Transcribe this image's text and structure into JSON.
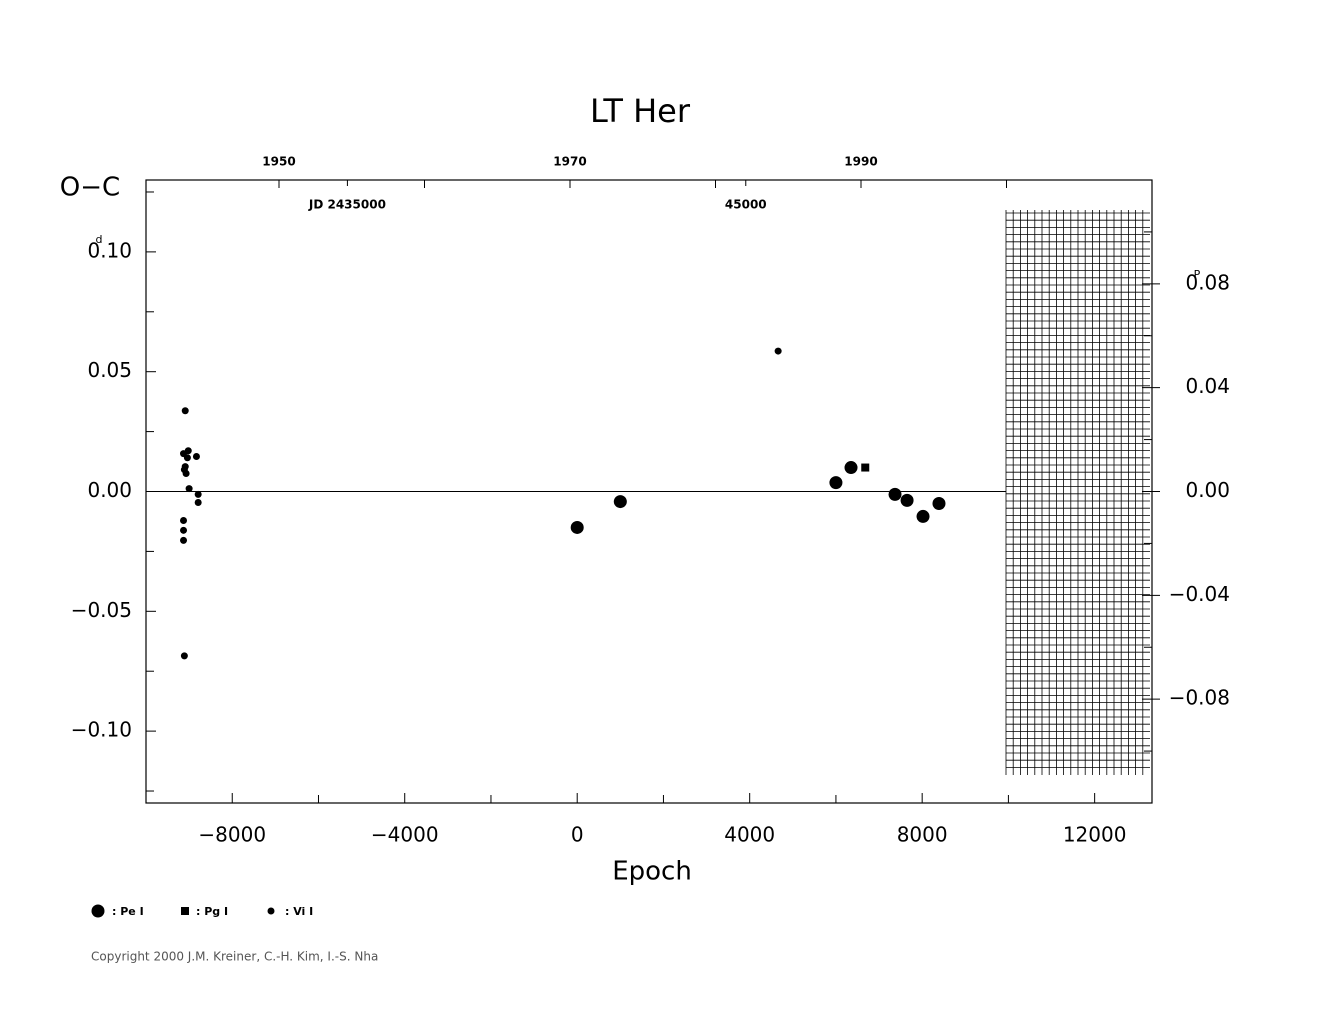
{
  "chart_data": {
    "type": "scatter",
    "title": "LT Her",
    "x_label": "Epoch",
    "y_label": "O−C",
    "y_unit": "d",
    "y2_unit": "P",
    "copyright": "Copyright 2000 J.M. Kreiner, C.-H. Kim, I.-S. Nha",
    "xlim": [
      -10000,
      13330
    ],
    "xticks": [
      {
        "value": -8000,
        "label": "−8000"
      },
      {
        "value": -4000,
        "label": "−4000"
      },
      0,
      4000,
      8000,
      12000
    ],
    "xminor": [
      -6000,
      -2000,
      2000,
      6000,
      10000
    ],
    "ylim": [
      -0.13,
      0.13
    ],
    "yticks": [
      {
        "value": 0.1,
        "label": "0.10"
      },
      {
        "value": 0.05,
        "label": "0.05"
      },
      {
        "value": 0,
        "label": "0.00"
      },
      {
        "value": -0.05,
        "label": "−0.05"
      },
      {
        "value": -0.1,
        "label": "−0.10"
      }
    ],
    "yminor": [
      0.125,
      0.075,
      0.025,
      -0.025,
      -0.075,
      -0.125
    ],
    "y2lim": [
      -0.12,
      0.12
    ],
    "y2ticks": [
      {
        "value": 0.08,
        "label": "0.08"
      },
      {
        "value": 0.04,
        "label": "0.04"
      },
      {
        "value": 0,
        "label": "0.00"
      },
      {
        "value": -0.04,
        "label": "−0.04"
      },
      {
        "value": -0.08,
        "label": "−0.08"
      }
    ],
    "y2minor": [
      0.1,
      0.06,
      0.02,
      -0.02,
      -0.06,
      -0.1
    ],
    "x2lim": [
      1940.86,
      2010
    ],
    "x2ticks": [
      1950,
      1970,
      1990
    ],
    "x2minor": [
      1960,
      1980,
      2000
    ],
    "jd_labels": [
      {
        "value": 2435000,
        "label": "JD 2435000"
      },
      {
        "value": 2445000,
        "label": "45000"
      }
    ],
    "series": [
      {
        "name": ": Pe I",
        "marker": "circle",
        "color": "#000",
        "x": [
          0,
          1000,
          6000,
          6350,
          7370,
          7650,
          8020,
          8390
        ],
        "values": [
          -0.015,
          -0.0042,
          0.0037,
          0.01,
          -0.0012,
          -0.0037,
          -0.0104,
          -0.005
        ]
      },
      {
        "name": ": Pg I",
        "marker": "square",
        "color": "#000",
        "x": [
          6680
        ],
        "values": [
          0.01
        ]
      },
      {
        "name": ": Vi I",
        "marker": "dot",
        "color": "#000",
        "x": [
          4660,
          -9090,
          -9020,
          -9130,
          -9040,
          -8830,
          -9090,
          -9110,
          -9070,
          -9000,
          -8790,
          -8790,
          -9130,
          -9130,
          -9130,
          -9110
        ],
        "values": [
          0.0586,
          0.0337,
          0.017,
          0.0158,
          0.0141,
          0.0146,
          0.0104,
          0.0091,
          0.0075,
          0.0012,
          -0.0012,
          -0.0046,
          -0.0121,
          -0.0162,
          -0.0204,
          -0.0686
        ]
      }
    ]
  }
}
